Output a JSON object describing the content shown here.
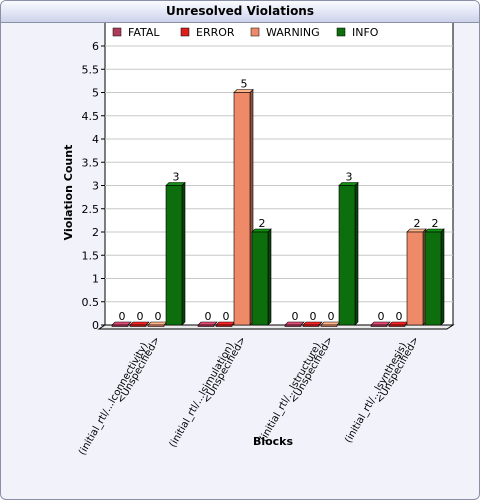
{
  "panel": {
    "title": "Unresolved Violations"
  },
  "chart_data": {
    "type": "bar",
    "title": "Unresolved Violations",
    "xlabel": "Blocks",
    "ylabel": "Violation Count",
    "ylim": [
      0,
      6.5
    ],
    "yticks": [
      "0",
      "0.5",
      "1",
      "1.5",
      "2",
      "2.5",
      "3",
      "3.5",
      "4",
      "4.5",
      "5",
      "5.5",
      "6"
    ],
    "legend_position": "top",
    "categories": [
      [
        "<Unspecified>",
        "(initial_rtl/...lconnectivity)"
      ],
      [
        "<Unspecified>",
        "(initial_rtl/...lsimulation)"
      ],
      [
        "<Unspecified>",
        "(initial_rtl/...lstructure)"
      ],
      [
        "<Unspecified>",
        "(initial_rtl/...lsynthesis)"
      ]
    ],
    "series": [
      {
        "name": "FATAL",
        "color": "#b03a5a",
        "values": [
          0,
          0,
          0,
          0
        ]
      },
      {
        "name": "ERROR",
        "color": "#dd1c1c",
        "values": [
          0,
          0,
          0,
          0
        ]
      },
      {
        "name": "WARNING",
        "color": "#ef8a69",
        "values": [
          0,
          5,
          0,
          2
        ]
      },
      {
        "name": "INFO",
        "color": "#0d6e0d",
        "values": [
          3,
          2,
          3,
          2
        ]
      }
    ],
    "data_labels": [
      [
        "0",
        "0",
        "0",
        "3"
      ],
      [
        "0",
        "0",
        "5",
        "2"
      ],
      [
        "0",
        "0",
        "0",
        "3"
      ],
      [
        "0",
        "0",
        "2",
        "2"
      ]
    ]
  }
}
